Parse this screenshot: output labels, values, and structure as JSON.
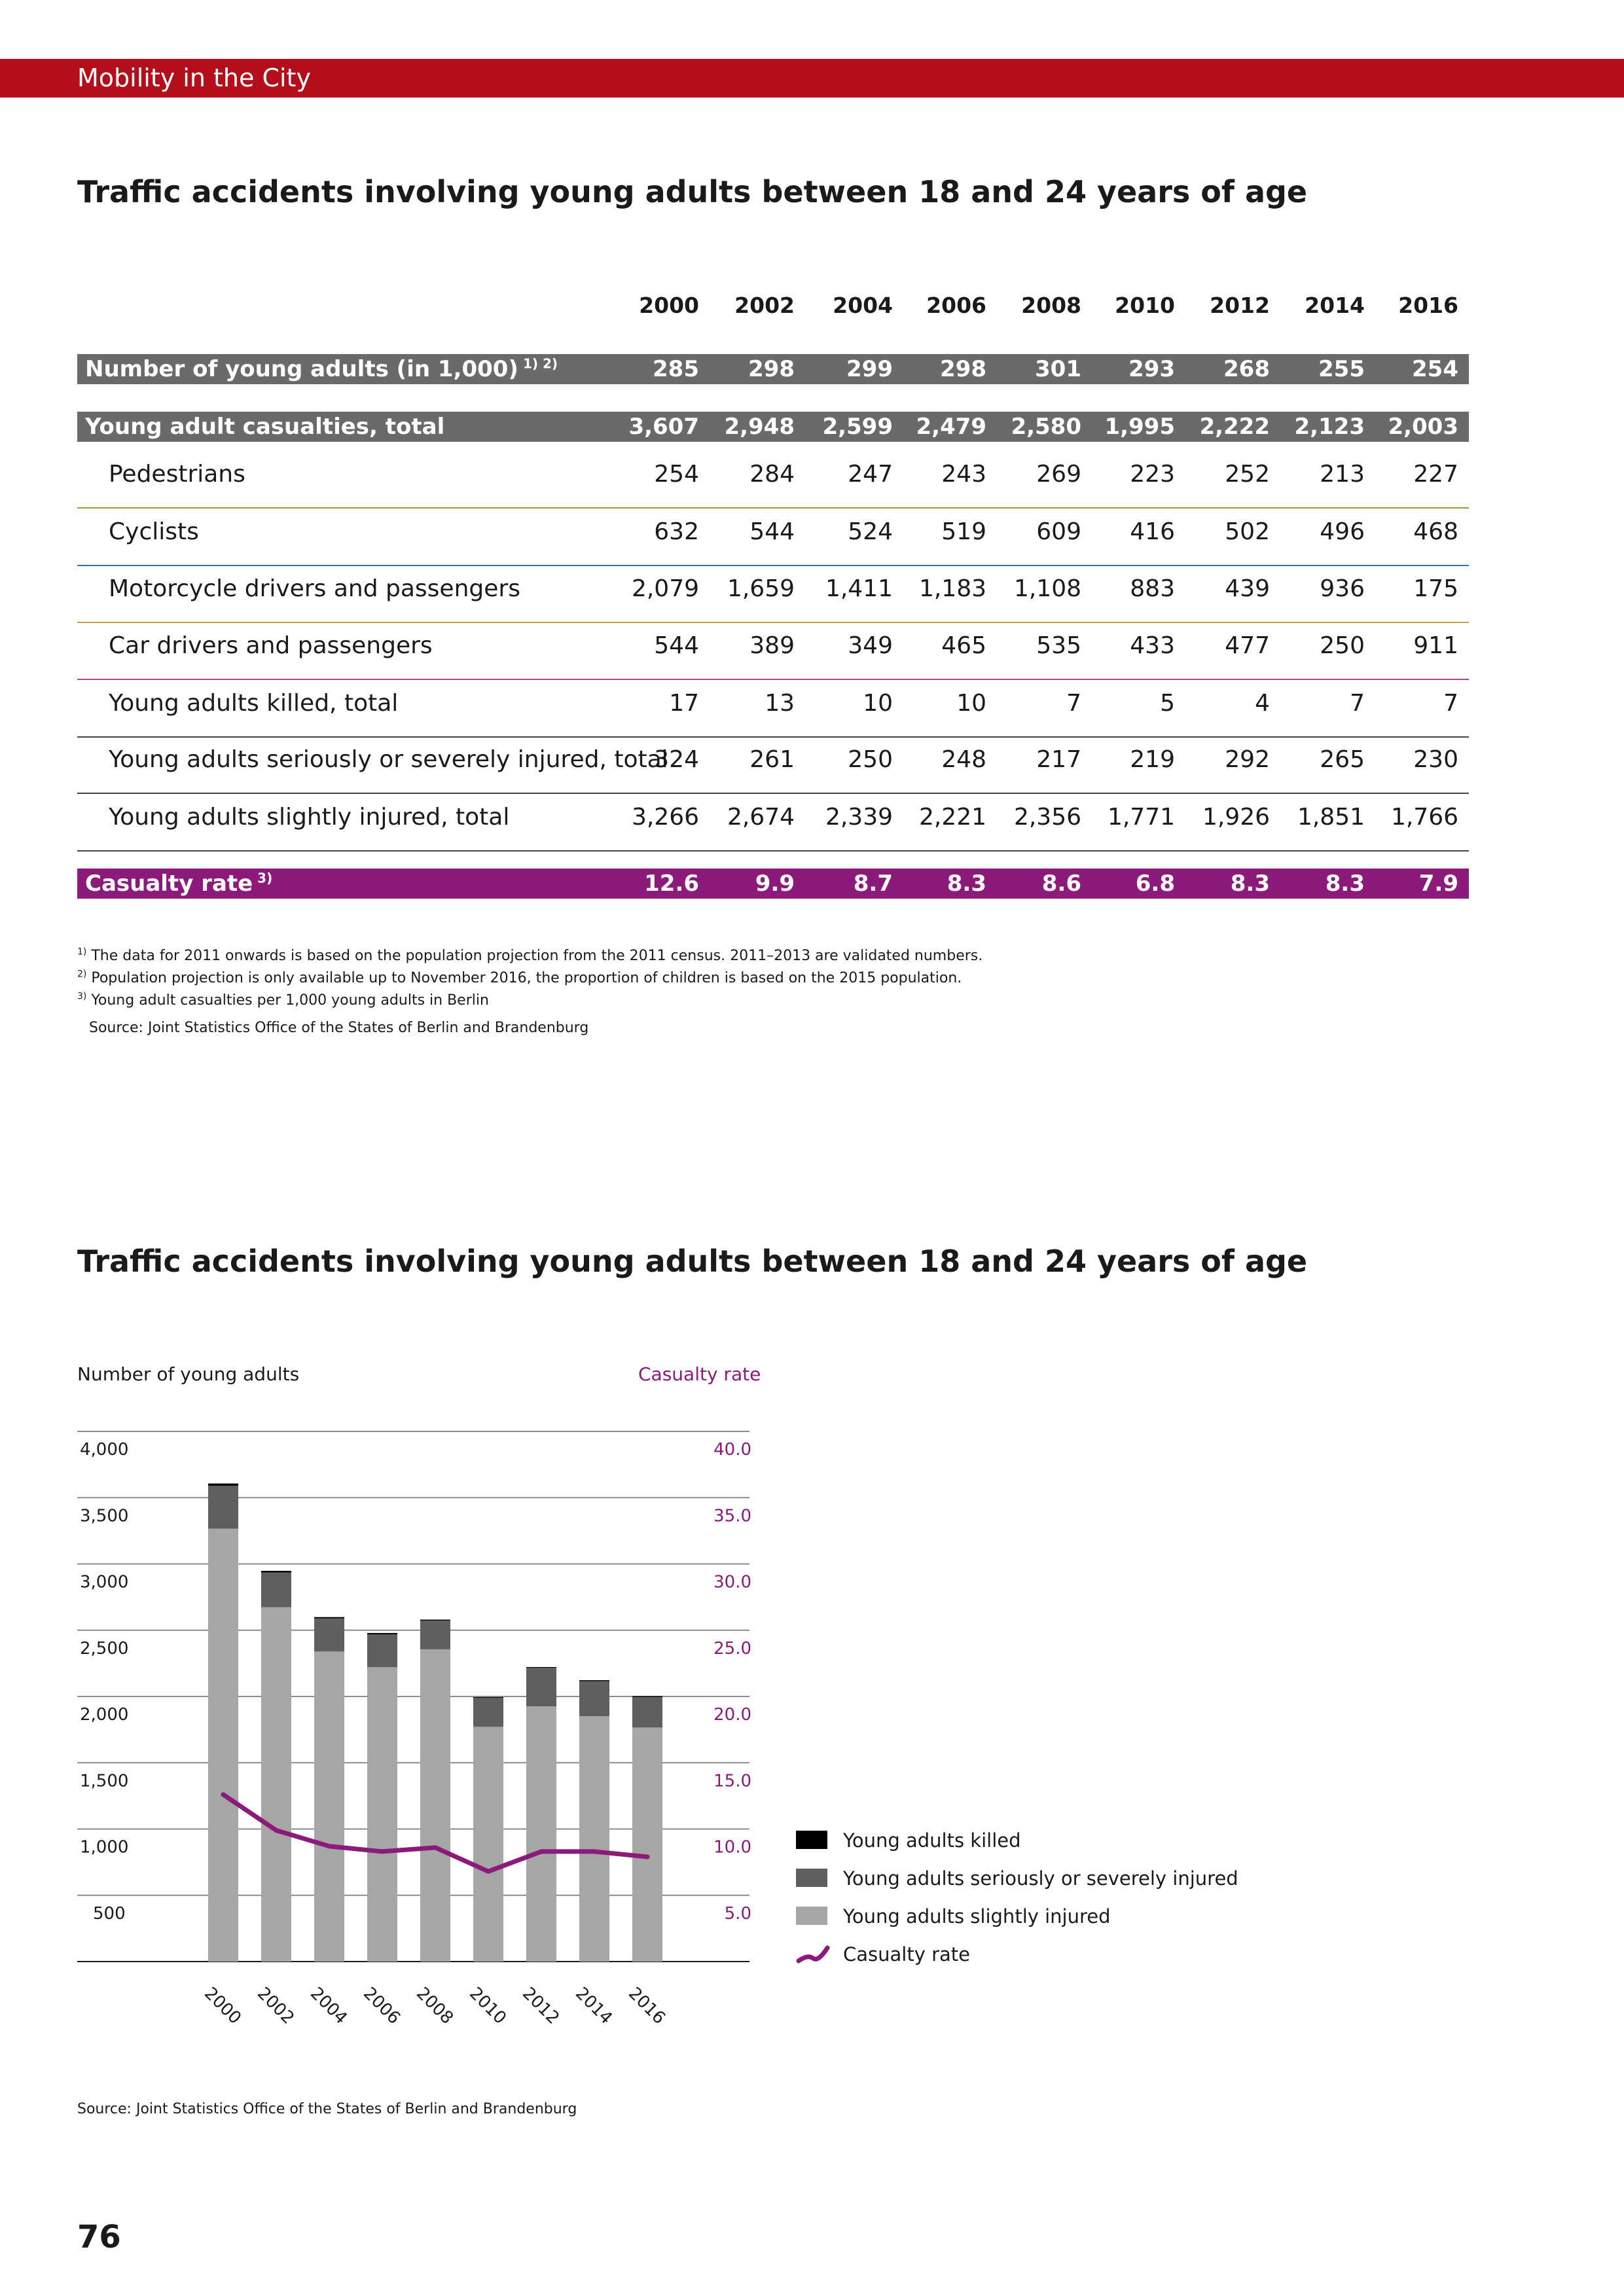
{
  "header": {
    "title": "Mobility in the City"
  },
  "table_section": {
    "title": "Traffic accidents involving young adults between 18 and 24 years of age",
    "years": [
      "2000",
      "2002",
      "2004",
      "2006",
      "2008",
      "2010",
      "2012",
      "2014",
      "2016"
    ],
    "rows": [
      {
        "label": "Number of young adults (in 1,000)",
        "sup": "1) 2)",
        "style": "hl",
        "values": [
          "285",
          "298",
          "299",
          "298",
          "301",
          "293",
          "268",
          "255",
          "254"
        ]
      },
      {
        "label": "Young adult casualties, total",
        "sup": "",
        "style": "hl",
        "values": [
          "3,607",
          "2,948",
          "2,599",
          "2,479",
          "2,580",
          "1,995",
          "2,222",
          "2,123",
          "2,003"
        ]
      },
      {
        "label": "Pedestrians",
        "sup": "",
        "style": "sub",
        "line_color": "#9c9c3a",
        "values": [
          "254",
          "284",
          "247",
          "243",
          "269",
          "223",
          "252",
          "213",
          "227"
        ]
      },
      {
        "label": "Cyclists",
        "sup": "",
        "style": "sub",
        "line_color": "#3a6fb0",
        "values": [
          "632",
          "544",
          "524",
          "519",
          "609",
          "416",
          "502",
          "496",
          "468"
        ]
      },
      {
        "label": "Motorcycle drivers and passengers",
        "sup": "",
        "style": "sub",
        "line_color": "#c4a040",
        "values": [
          "2,079",
          "1,659",
          "1,411",
          "1,183",
          "1,108",
          "883",
          "439",
          "936",
          "175"
        ]
      },
      {
        "label": "Car drivers and passengers",
        "sup": "",
        "style": "sub",
        "line_color": "#b04a8a",
        "values": [
          "544",
          "389",
          "349",
          "465",
          "535",
          "433",
          "477",
          "250",
          "911"
        ]
      },
      {
        "label": "Young adults killed, total",
        "sup": "",
        "style": "sub",
        "line_color": "#444444",
        "values": [
          "17",
          "13",
          "10",
          "10",
          "7",
          "5",
          "4",
          "7",
          "7"
        ]
      },
      {
        "label": "Young adults seriously or severely injured, total",
        "sup": "",
        "style": "sub",
        "line_color": "#444444",
        "values": [
          "324",
          "261",
          "250",
          "248",
          "217",
          "219",
          "292",
          "265",
          "230"
        ]
      },
      {
        "label": "Young adults slightly injured, total",
        "sup": "",
        "style": "sub",
        "line_color": "#444444",
        "values": [
          "3,266",
          "2,674",
          "2,339",
          "2,221",
          "2,356",
          "1,771",
          "1,926",
          "1,851",
          "1,766"
        ]
      },
      {
        "label": "Casualty rate",
        "sup": "3)",
        "style": "hl-purple",
        "values": [
          "12.6",
          "9.9",
          "8.7",
          "8.3",
          "8.6",
          "6.8",
          "8.3",
          "8.3",
          "7.9"
        ]
      }
    ],
    "footnotes": [
      {
        "mark": "1)",
        "text": "The data for 2011 onwards is based on the population projection from the 2011 census. 2011–2013 are validated numbers."
      },
      {
        "mark": "2)",
        "text": "Population projection is only available up to November 2016, the proportion of children is based on the 2015 population."
      },
      {
        "mark": "3)",
        "text": "Young adult casualties per 1,000 young adults in Berlin"
      }
    ],
    "source": "Source: Joint Statistics Office of the States of Berlin and Brandenburg"
  },
  "chart_section": {
    "title": "Traffic accidents involving young adults between 18 and 24 years of age",
    "source": "Source: Joint Statistics Office of the States of Berlin and Brandenburg"
  },
  "page_number": "76",
  "colors": {
    "header_red": "#b30e1a",
    "highlight_grey": "#6a6a6a",
    "purple": "#8c1a7a",
    "killed": "#000000",
    "serious": "#5f5f5f",
    "slight": "#a6a6a6"
  },
  "chart_data": {
    "type": "bar",
    "stacked": true,
    "categories": [
      "2000",
      "2002",
      "2004",
      "2006",
      "2008",
      "2010",
      "2012",
      "2014",
      "2016"
    ],
    "series": [
      {
        "name": "Young adults slightly injured",
        "color": "#a6a6a6",
        "values": [
          3266,
          2674,
          2339,
          2221,
          2356,
          1771,
          1926,
          1851,
          1766
        ]
      },
      {
        "name": "Young adults seriously or severely injured",
        "color": "#5f5f5f",
        "values": [
          324,
          261,
          250,
          248,
          217,
          219,
          292,
          265,
          230
        ]
      },
      {
        "name": "Young adults killed",
        "color": "#000000",
        "values": [
          17,
          13,
          10,
          10,
          7,
          5,
          4,
          7,
          7
        ]
      }
    ],
    "line_series": {
      "name": "Casualty rate",
      "color": "#8c1a7a",
      "axis": "right",
      "values": [
        12.6,
        9.9,
        8.7,
        8.3,
        8.6,
        6.8,
        8.3,
        8.3,
        7.9
      ]
    },
    "ylabel": "Number of young adults",
    "y2label": "Casualty rate",
    "ylim": [
      0,
      4000
    ],
    "y2lim": [
      0,
      40
    ],
    "yticks": [
      "4,000",
      "3,500",
      "3,000",
      "2,500",
      "2,000",
      "1,500",
      "1,000",
      "500"
    ],
    "y2ticks": [
      "40.0",
      "35.0",
      "30.0",
      "25.0",
      "20.0",
      "15.0",
      "10.0",
      "5.0"
    ],
    "legend": [
      "Young adults killed",
      "Young adults seriously or severely injured",
      "Young adults slightly injured",
      "Casualty rate"
    ],
    "legend_position": "right",
    "grid": true
  }
}
